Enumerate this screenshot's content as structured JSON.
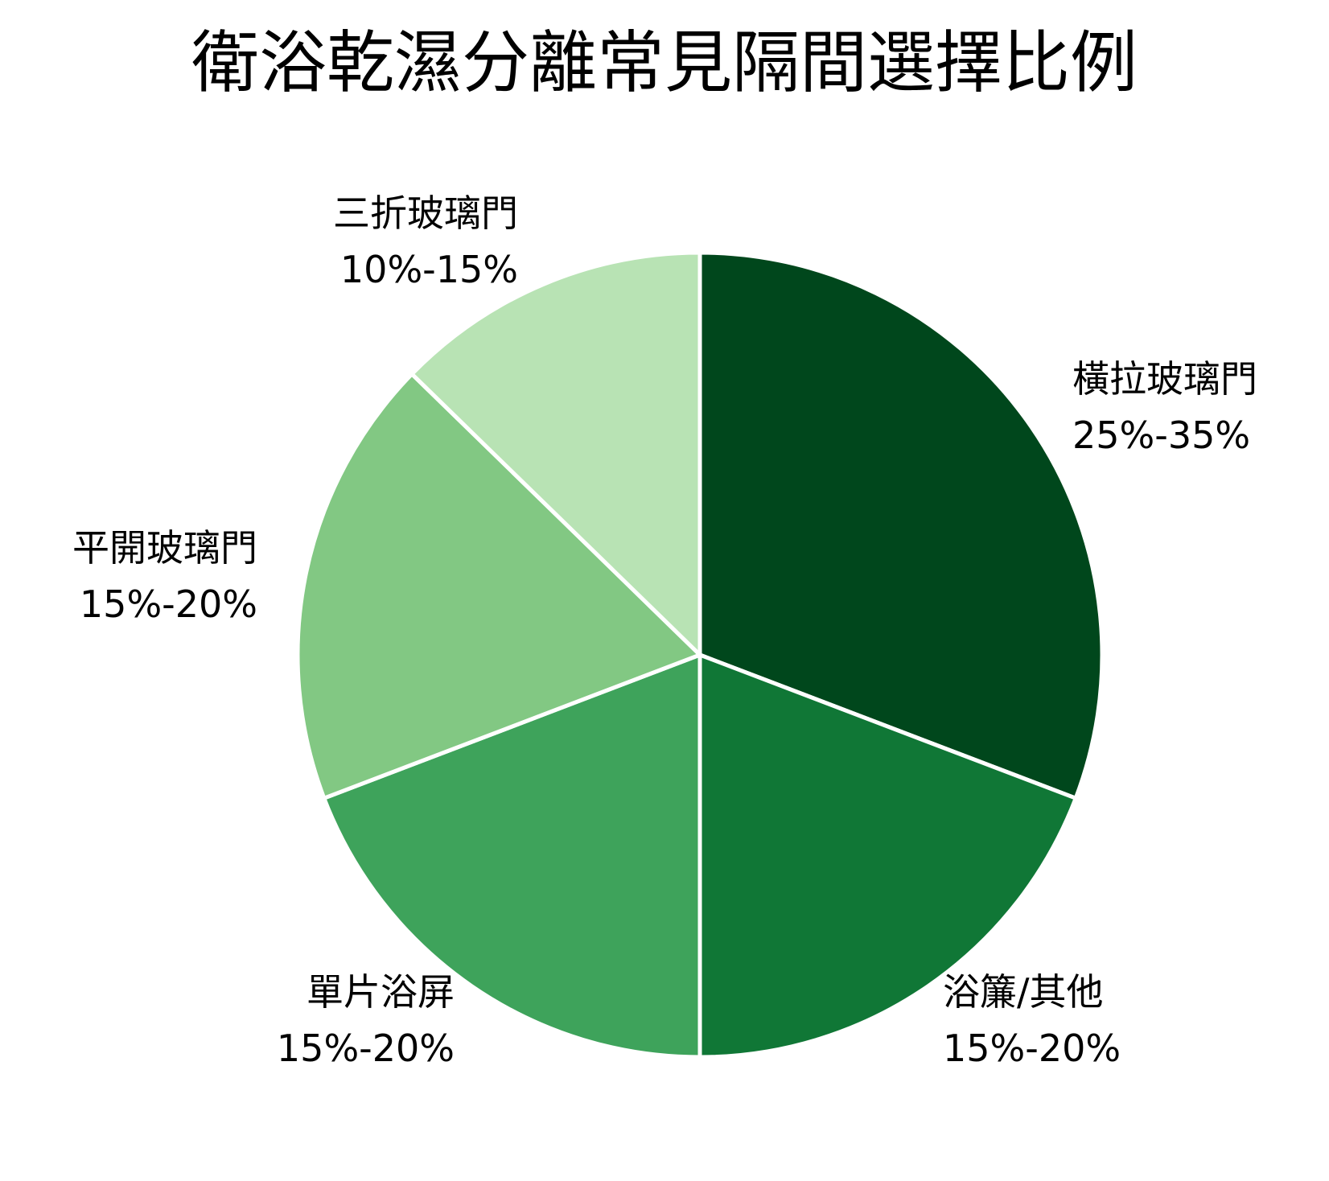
{
  "chart_data": {
    "type": "pie",
    "title": "衛浴乾濕分離常見隔間選擇比例",
    "start_angle": "12 o'clock",
    "direction": "clockwise",
    "slices": [
      {
        "name": "橫拉玻璃門",
        "range_text": "25%-35%",
        "value": 30.8,
        "color": "#00471c"
      },
      {
        "name": "浴簾/其他",
        "range_text": "15%-20%",
        "value": 19.2,
        "color": "#107736"
      },
      {
        "name": "單片浴屏",
        "range_text": "15%-20%",
        "value": 19.2,
        "color": "#3ea35b"
      },
      {
        "name": "平開玻璃門",
        "range_text": "15%-20%",
        "value": 18.1,
        "color": "#82c883"
      },
      {
        "name": "三折玻璃門",
        "range_text": "10%-15%",
        "value": 12.7,
        "color": "#b8e3b4"
      }
    ]
  }
}
